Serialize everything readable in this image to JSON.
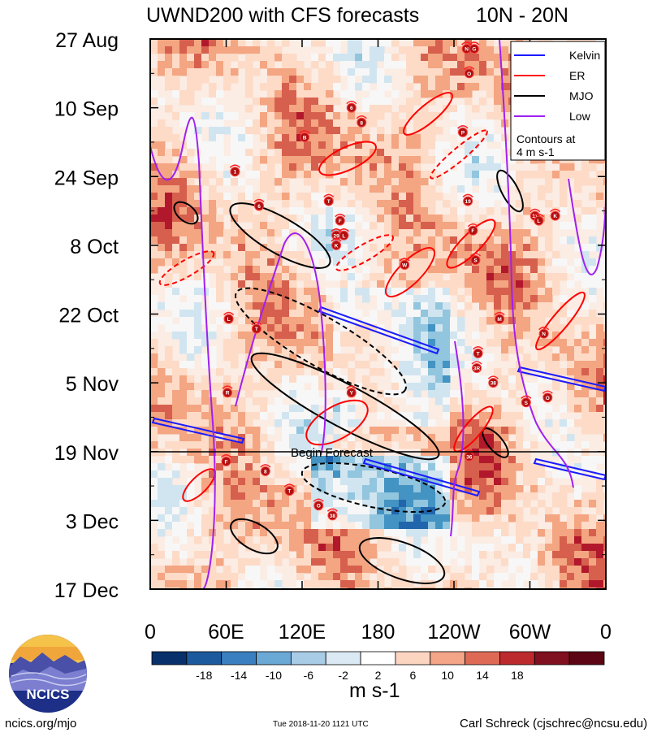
{
  "chart_data": {
    "type": "heatmap",
    "title": "UWND200 with CFS forecasts",
    "region": "10N - 20N",
    "x_ticks": [
      "0",
      "60E",
      "120E",
      "180",
      "120W",
      "60W",
      "0"
    ],
    "y_ticks": [
      "27 Aug",
      "10 Sep",
      "24 Sep",
      "8 Oct",
      "22 Oct",
      "5 Nov",
      "19 Nov",
      "3 Dec",
      "17 Dec"
    ],
    "colorbar": {
      "ticks": [
        "-18",
        "-14",
        "-10",
        "-6",
        "-2",
        "2",
        "6",
        "10",
        "14",
        "18"
      ],
      "colors": [
        "#08306b",
        "#1c5a9e",
        "#3a7fbf",
        "#6aa8d6",
        "#a8cce6",
        "#dbe9f4",
        "#ffffff",
        "#fcd5c0",
        "#f4a487",
        "#de6a55",
        "#bd2a2e",
        "#800f1f",
        "#5c0514"
      ],
      "units": "m s-1"
    },
    "legend": {
      "entries": [
        {
          "label": "Kelvin",
          "color": "#1a1aff"
        },
        {
          "label": "ER",
          "color": "#ff1a1a"
        },
        {
          "label": "MJO",
          "color": "#000000"
        },
        {
          "label": "Low",
          "color": "#a020f0"
        }
      ],
      "note_line1": "Contours at",
      "note_line2": "4 m s-1"
    },
    "forecast_marker": {
      "date": "19 Nov",
      "label": "Begin Forecast"
    },
    "storm_markers": [
      {
        "label": "N",
        "lon_deg": 250,
        "date_day": 2
      },
      {
        "label": "O",
        "lon_deg": 252,
        "date_day": 7
      },
      {
        "label": "P",
        "lon_deg": 247,
        "date_day": 19
      },
      {
        "label": "B",
        "lon_deg": 122,
        "date_day": 20
      },
      {
        "label": "8",
        "lon_deg": 167,
        "date_day": 17
      },
      {
        "label": "6",
        "lon_deg": 159,
        "date_day": 14
      },
      {
        "label": "1",
        "lon_deg": 67,
        "date_day": 27
      },
      {
        "label": "6",
        "lon_deg": 86,
        "date_day": 34
      },
      {
        "label": "T",
        "lon_deg": 141,
        "date_day": 33
      },
      {
        "label": "F",
        "lon_deg": 150,
        "date_day": 37
      },
      {
        "label": "29",
        "lon_deg": 147,
        "date_day": 40
      },
      {
        "label": "L",
        "lon_deg": 153,
        "date_day": 40
      },
      {
        "label": "K",
        "lon_deg": 147,
        "date_day": 42
      },
      {
        "label": "19",
        "lon_deg": 251,
        "date_day": 33
      },
      {
        "label": "G",
        "lon_deg": 256,
        "date_day": 2
      },
      {
        "label": "11",
        "lon_deg": 304,
        "date_day": 36
      },
      {
        "label": "L",
        "lon_deg": 307,
        "date_day": 37
      },
      {
        "label": "K",
        "lon_deg": 320,
        "date_day": 36
      },
      {
        "label": "W",
        "lon_deg": 201,
        "date_day": 46
      },
      {
        "label": "S",
        "lon_deg": 257,
        "date_day": 45
      },
      {
        "label": "F",
        "lon_deg": 255,
        "date_day": 39
      },
      {
        "label": "M",
        "lon_deg": 276,
        "date_day": 57
      },
      {
        "label": "L",
        "lon_deg": 62,
        "date_day": 57
      },
      {
        "label": "T",
        "lon_deg": 84,
        "date_day": 59
      },
      {
        "label": "N",
        "lon_deg": 311,
        "date_day": 60
      },
      {
        "label": "T",
        "lon_deg": 259,
        "date_day": 64
      },
      {
        "label": "3R",
        "lon_deg": 258,
        "date_day": 67
      },
      {
        "label": "38",
        "lon_deg": 271,
        "date_day": 70
      },
      {
        "label": "Y",
        "lon_deg": 159,
        "date_day": 72
      },
      {
        "label": "O",
        "lon_deg": 314,
        "date_day": 73
      },
      {
        "label": "S",
        "lon_deg": 297,
        "date_day": 74
      },
      {
        "label": "36",
        "lon_deg": 252,
        "date_day": 85
      },
      {
        "label": "R",
        "lon_deg": 61,
        "date_day": 72
      },
      {
        "label": "F",
        "lon_deg": 60,
        "date_day": 86
      },
      {
        "label": "8",
        "lon_deg": 91,
        "date_day": 88
      },
      {
        "label": "T",
        "lon_deg": 110,
        "date_day": 92
      },
      {
        "label": "O",
        "lon_deg": 133,
        "date_day": 95
      },
      {
        "label": "38",
        "lon_deg": 144,
        "date_day": 97
      }
    ]
  },
  "footer": {
    "left": "ncics.org/mjo",
    "timestamp": "Tue 2018-11-20 1121 UTC",
    "right": "Carl Schreck (cjschrec@ncsu.edu)",
    "logo_text": "NCICS"
  }
}
